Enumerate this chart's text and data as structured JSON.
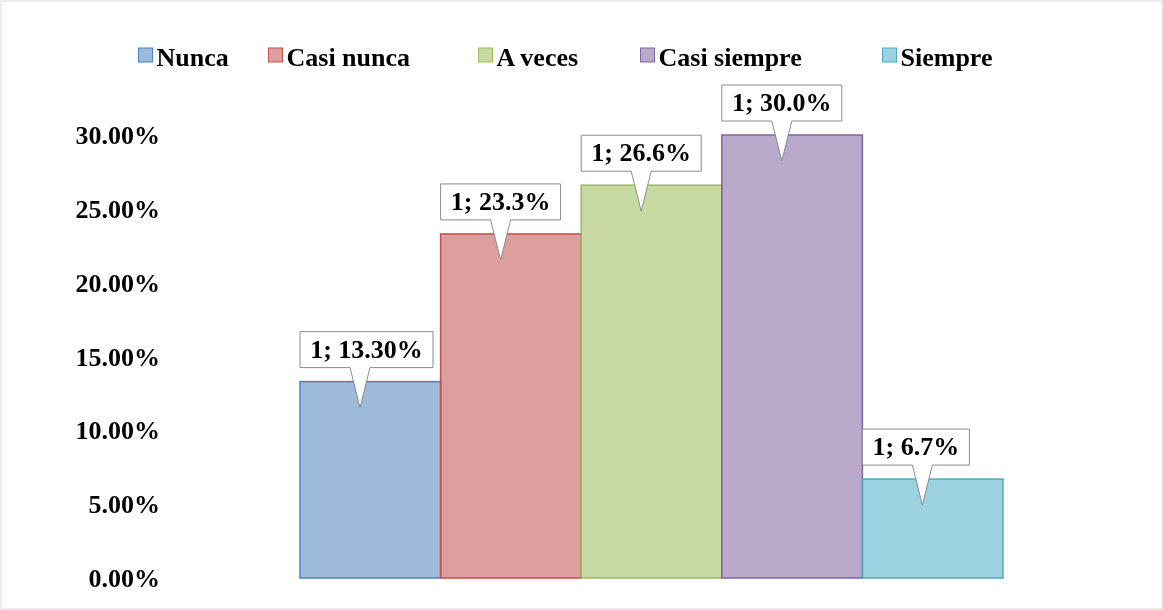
{
  "chart_data": {
    "type": "bar",
    "categories": [
      null
    ],
    "series": [
      {
        "name": "Nunca",
        "color": "#4f81bd",
        "values": [
          13.3
        ],
        "value_labels": [
          "1; 13.30%"
        ]
      },
      {
        "name": "Casi nunca",
        "color": "#c0504d",
        "values": [
          23.3
        ],
        "value_labels": [
          "1; 23.3%"
        ]
      },
      {
        "name": "A veces",
        "color": "#9bbb59",
        "values": [
          26.6
        ],
        "value_labels": [
          "1; 26.6%"
        ]
      },
      {
        "name": "Casi siempre",
        "color": "#8064a2",
        "values": [
          30.0
        ],
        "value_labels": [
          "1; 30.0%"
        ]
      },
      {
        "name": "Siempre",
        "color": "#4bacc6",
        "values": [
          6.7
        ],
        "value_labels": [
          "1; 6.7%"
        ]
      }
    ],
    "ylim": [
      0,
      30
    ],
    "yticks": [
      {
        "value": 0,
        "label": "0.00%"
      },
      {
        "value": 5,
        "label": "5.00%"
      },
      {
        "value": 10,
        "label": "10.00%"
      },
      {
        "value": 15,
        "label": "15.00%"
      },
      {
        "value": 20,
        "label": "20.00%"
      },
      {
        "value": 25,
        "label": "25.00%"
      },
      {
        "value": 30,
        "label": "30.00%"
      }
    ],
    "grid": false,
    "legend": "top"
  }
}
